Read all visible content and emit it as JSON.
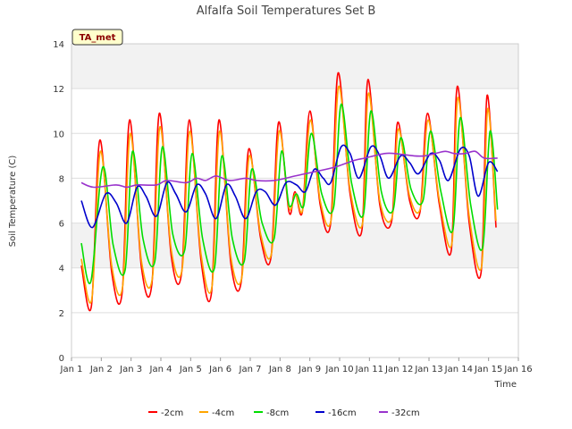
{
  "chart_data": {
    "type": "line",
    "title": "Alfalfa Soil Temperatures Set B",
    "xlabel": "Time",
    "ylabel": "Soil Temperature (C)",
    "badge": "TA_met",
    "xlim": [
      1,
      16
    ],
    "ylim": [
      0,
      14
    ],
    "x_ticks": [
      1,
      2,
      3,
      4,
      5,
      6,
      7,
      8,
      9,
      10,
      11,
      12,
      13,
      14,
      15,
      16
    ],
    "x_tick_labels": [
      "Jan 1",
      "Jan 2",
      "Jan 3",
      "Jan 4",
      "Jan 5",
      "Jan 6",
      "Jan 7",
      "Jan 8",
      "Jan 9",
      "Jan 10",
      "Jan 11",
      "Jan 12",
      "Jan 13",
      "Jan 14",
      "Jan 15",
      "Jan 16"
    ],
    "y_ticks": [
      0,
      2,
      4,
      6,
      8,
      10,
      12,
      14
    ],
    "y_tick_labels": [
      "0",
      "2",
      "4",
      "6",
      "8",
      "10",
      "12",
      "14"
    ],
    "grid": true,
    "legend_position": "bottom",
    "series": [
      {
        "name": "-2cm",
        "color": "#ff0000",
        "x": [
          1.33,
          1.67,
          1.95,
          2.35,
          2.7,
          2.95,
          3.35,
          3.7,
          3.95,
          4.35,
          4.7,
          4.95,
          5.35,
          5.7,
          5.95,
          6.35,
          6.7,
          6.95,
          7.35,
          7.7,
          7.95,
          8.3,
          8.5,
          8.75,
          9.0,
          9.35,
          9.7,
          9.95,
          10.35,
          10.75,
          10.95,
          11.35,
          11.75,
          11.95,
          12.35,
          12.7,
          12.95,
          13.35,
          13.75,
          13.95,
          14.35,
          14.75,
          14.95,
          15.25
        ],
        "y": [
          4.1,
          2.3,
          9.7,
          3.8,
          2.9,
          10.6,
          4.0,
          3.3,
          10.9,
          4.5,
          3.8,
          10.6,
          4.3,
          2.9,
          10.6,
          4.2,
          3.4,
          9.3,
          5.3,
          4.5,
          10.5,
          6.5,
          7.4,
          6.5,
          11.0,
          6.8,
          6.0,
          12.7,
          7.3,
          5.7,
          12.4,
          6.8,
          6.1,
          10.5,
          7.0,
          6.5,
          10.9,
          6.8,
          4.8,
          12.1,
          6.0,
          3.8,
          11.7,
          5.8
        ]
      },
      {
        "name": "-4cm",
        "color": "#ffa500",
        "x": [
          1.33,
          1.68,
          1.97,
          2.35,
          2.72,
          2.97,
          3.35,
          3.72,
          3.97,
          4.35,
          4.72,
          4.97,
          5.35,
          5.72,
          5.97,
          6.35,
          6.72,
          6.97,
          7.35,
          7.72,
          7.97,
          8.3,
          8.52,
          8.76,
          9.02,
          9.35,
          9.72,
          9.97,
          10.35,
          10.77,
          10.97,
          11.35,
          11.77,
          11.97,
          12.35,
          12.72,
          12.97,
          13.35,
          13.77,
          13.97,
          14.35,
          14.77,
          14.97,
          15.25
        ],
        "y": [
          4.4,
          2.6,
          9.2,
          4.1,
          3.2,
          10.0,
          4.3,
          3.6,
          10.3,
          4.8,
          4.0,
          10.1,
          4.6,
          3.2,
          10.1,
          4.5,
          3.6,
          9.0,
          5.5,
          4.7,
          10.1,
          6.7,
          7.3,
          6.6,
          10.6,
          7.0,
          6.2,
          12.1,
          7.5,
          6.0,
          11.8,
          7.0,
          6.3,
          10.2,
          7.2,
          6.7,
          10.6,
          7.0,
          5.1,
          11.6,
          6.3,
          4.1,
          11.1,
          6.1
        ]
      },
      {
        "name": "-8cm",
        "color": "#00dd00",
        "x": [
          1.33,
          1.65,
          2.05,
          2.4,
          2.8,
          3.05,
          3.4,
          3.8,
          4.05,
          4.4,
          4.8,
          5.05,
          5.4,
          5.8,
          6.05,
          6.4,
          6.8,
          7.05,
          7.4,
          7.8,
          8.05,
          8.3,
          8.55,
          8.8,
          9.05,
          9.4,
          9.8,
          10.05,
          10.4,
          10.8,
          11.05,
          11.4,
          11.8,
          12.05,
          12.4,
          12.8,
          13.05,
          13.4,
          13.8,
          14.05,
          14.4,
          14.8,
          15.05,
          15.3
        ],
        "y": [
          5.1,
          3.4,
          8.5,
          5.0,
          3.9,
          9.2,
          5.3,
          4.3,
          9.4,
          5.5,
          4.8,
          9.1,
          5.3,
          4.0,
          9.0,
          5.3,
          4.3,
          8.4,
          6.0,
          5.3,
          9.2,
          6.8,
          7.3,
          6.8,
          10.0,
          7.3,
          6.7,
          11.3,
          7.8,
          6.4,
          11.0,
          7.4,
          6.6,
          9.8,
          7.5,
          7.0,
          10.1,
          7.4,
          5.7,
          10.7,
          6.8,
          4.9,
          10.1,
          6.6
        ]
      },
      {
        "name": "-16cm",
        "color": "#0000cc",
        "x": [
          1.33,
          1.7,
          2.15,
          2.5,
          2.85,
          3.2,
          3.5,
          3.85,
          4.2,
          4.5,
          4.85,
          5.2,
          5.5,
          5.85,
          6.2,
          6.5,
          6.85,
          7.2,
          7.5,
          7.85,
          8.2,
          8.55,
          8.85,
          9.15,
          9.45,
          9.7,
          10.05,
          10.35,
          10.65,
          11.05,
          11.35,
          11.65,
          12.05,
          12.35,
          12.65,
          13.05,
          13.35,
          13.65,
          14.05,
          14.35,
          14.65,
          15.0,
          15.3
        ],
        "y": [
          7.0,
          5.8,
          7.3,
          6.9,
          6.0,
          7.6,
          7.2,
          6.3,
          7.8,
          7.3,
          6.5,
          7.7,
          7.3,
          6.2,
          7.7,
          7.2,
          6.2,
          7.4,
          7.4,
          6.8,
          7.8,
          7.7,
          7.4,
          8.4,
          8.0,
          7.8,
          9.4,
          9.1,
          8.0,
          9.4,
          9.0,
          8.0,
          9.0,
          8.7,
          8.2,
          9.1,
          8.8,
          7.9,
          9.3,
          9.0,
          7.2,
          8.7,
          8.3
        ]
      },
      {
        "name": "-32cm",
        "color": "#9933cc",
        "x": [
          1.33,
          1.75,
          2.5,
          2.85,
          3.2,
          3.85,
          4.2,
          4.85,
          5.2,
          5.5,
          5.85,
          6.3,
          6.85,
          7.2,
          7.8,
          8.5,
          8.85,
          9.2,
          9.85,
          10.5,
          10.85,
          11.5,
          11.85,
          12.5,
          12.85,
          13.2,
          13.55,
          13.85,
          14.2,
          14.55,
          14.85,
          15.3
        ],
        "y": [
          7.8,
          7.6,
          7.7,
          7.6,
          7.7,
          7.7,
          7.9,
          7.8,
          8.0,
          7.9,
          8.1,
          7.9,
          8.0,
          7.9,
          7.9,
          8.1,
          8.2,
          8.3,
          8.5,
          8.8,
          8.9,
          9.1,
          9.1,
          9.0,
          9.0,
          9.1,
          9.2,
          9.1,
          9.1,
          9.2,
          8.9,
          8.9
        ]
      }
    ]
  }
}
